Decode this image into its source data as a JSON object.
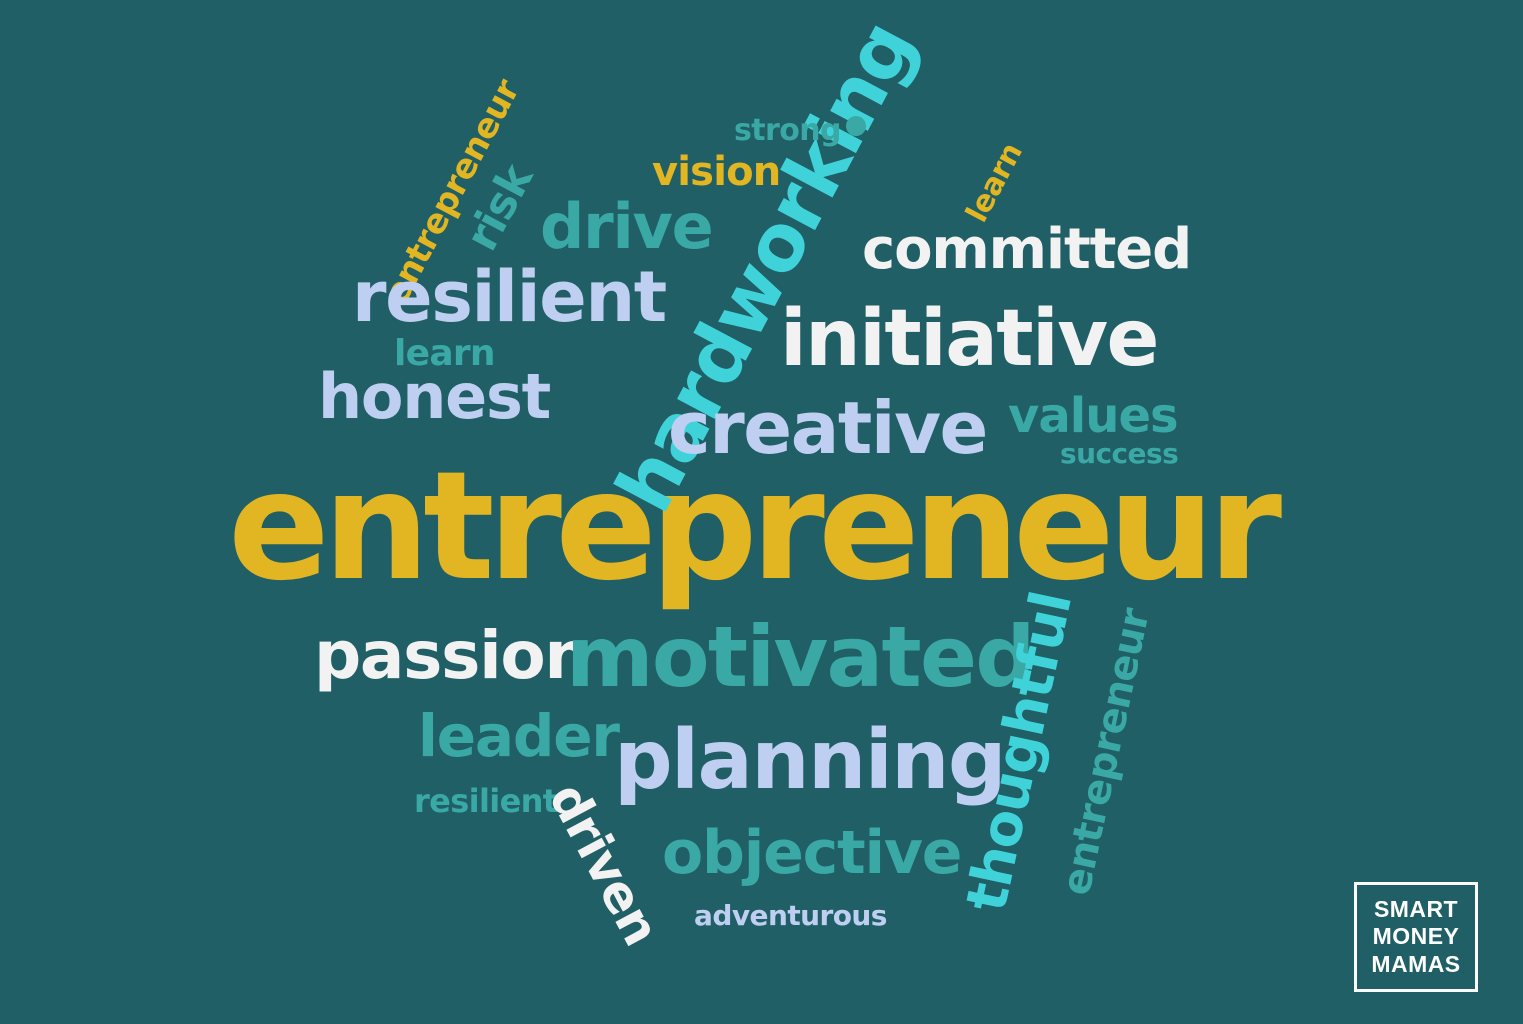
{
  "word_cloud": {
    "words": {
      "entrepreneur_main": "entrepreneur",
      "hardworking": "hardworking",
      "passion": "passion",
      "motivated": "motivated",
      "leader": "leader",
      "planning": "planning",
      "resilient_bottom": "resilient",
      "objective": "objective",
      "adventurous": "adventurous",
      "driven": "driven",
      "thoughtful": "thoughtful",
      "entrepreneur_bottom_right": "entrepreneur",
      "creative": "creative",
      "values": "values",
      "success": "success",
      "honest": "honest",
      "learn_left": "learn",
      "resilient_top": "resilient",
      "initiative": "initiative",
      "committed": "committed",
      "drive": "drive",
      "risk": "risk",
      "vision": "vision",
      "strong": "strong",
      "learn_right": "learn",
      "entrepreneur_top_left": "entrepreneur"
    },
    "colors": {
      "background": "#205f66",
      "gold": "#e2b522",
      "teal": "#3aa9a6",
      "cyan": "#3fd3d9",
      "white": "#f2f2f2",
      "lavender": "#bfcff2"
    }
  },
  "logo": {
    "line1": "SMART",
    "line2": "MONEY",
    "line3": "MAMAS"
  }
}
